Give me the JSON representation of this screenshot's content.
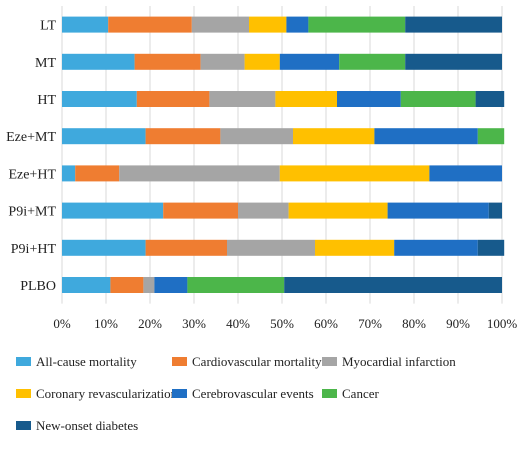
{
  "chart_data": {
    "type": "bar",
    "orientation": "horizontal",
    "stacked": true,
    "title": "",
    "xlabel": "",
    "ylabel": "",
    "xlim": [
      0,
      100
    ],
    "x_ticks": [
      "0%",
      "10%",
      "20%",
      "30%",
      "40%",
      "50%",
      "60%",
      "70%",
      "80%",
      "90%",
      "100%"
    ],
    "grid": true,
    "legend_position": "bottom",
    "categories": [
      "LT",
      "MT",
      "HT",
      "Eze+MT",
      "Eze+HT",
      "P9i+MT",
      "P9i+HT",
      "PLBO"
    ],
    "series": [
      {
        "name": "All-cause mortality",
        "color": "#3fa9dd",
        "values": [
          10.5,
          16.5,
          17,
          19,
          3,
          23,
          19,
          11
        ]
      },
      {
        "name": "Cardiovascular mortality",
        "color": "#ef7d31",
        "values": [
          19,
          15,
          16.5,
          17,
          10,
          17,
          18.5,
          7.5
        ]
      },
      {
        "name": "Myocardial infarction",
        "color": "#a5a5a5",
        "values": [
          13,
          10,
          15,
          16.5,
          36.5,
          11.5,
          20,
          2.5
        ]
      },
      {
        "name": "Coronary revascularization",
        "color": "#ffc000",
        "values": [
          8.5,
          8,
          14,
          18.5,
          34,
          22.5,
          18,
          0
        ]
      },
      {
        "name": "Cerebrovascular events",
        "color": "#1f6fc4",
        "values": [
          5,
          13.5,
          14.5,
          23.5,
          16.5,
          23,
          19,
          7.5
        ]
      },
      {
        "name": "Cancer",
        "color": "#4cb64a",
        "values": [
          22,
          15,
          17,
          6,
          0,
          0,
          0,
          22
        ]
      },
      {
        "name": "New-onset diabetes",
        "color": "#175a8c",
        "values": [
          22,
          22,
          6.5,
          0,
          0,
          3,
          6,
          49.5
        ]
      }
    ]
  }
}
